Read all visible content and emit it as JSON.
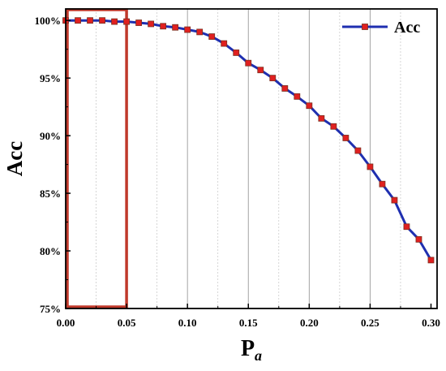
{
  "chart_data": {
    "type": "line",
    "xlabel_main": "P",
    "xlabel_sub": "a",
    "ylabel": "Acc",
    "xlim": [
      0.0,
      0.305
    ],
    "ylim": [
      75,
      101
    ],
    "x_ticks": [
      "0.00",
      "0.05",
      "0.10",
      "0.15",
      "0.20",
      "0.25",
      "0.30"
    ],
    "y_ticks": [
      "75%",
      "80%",
      "85%",
      "90%",
      "95%",
      "100%"
    ],
    "grid": "vertical-dotted",
    "legend_position": "top-right",
    "series": [
      {
        "name": "Acc",
        "line_color": "#1f2fb0",
        "marker_color": "#e02020",
        "x": [
          0.0,
          0.01,
          0.02,
          0.03,
          0.04,
          0.05,
          0.06,
          0.07,
          0.08,
          0.09,
          0.1,
          0.11,
          0.12,
          0.13,
          0.14,
          0.15,
          0.16,
          0.17,
          0.18,
          0.19,
          0.2,
          0.21,
          0.22,
          0.23,
          0.24,
          0.25,
          0.26,
          0.27,
          0.28,
          0.29,
          0.3
        ],
        "y": [
          100.0,
          100.0,
          100.0,
          100.0,
          99.9,
          99.9,
          99.8,
          99.7,
          99.5,
          99.4,
          99.2,
          99.0,
          98.6,
          98.0,
          97.2,
          96.3,
          95.7,
          95.0,
          94.1,
          93.4,
          92.6,
          91.5,
          90.8,
          89.8,
          88.7,
          87.3,
          85.8,
          84.4,
          82.1,
          81.0,
          79.2
        ]
      }
    ],
    "highlight_box": {
      "x_range": [
        0.0,
        0.05
      ],
      "color": "#c0392b"
    }
  }
}
